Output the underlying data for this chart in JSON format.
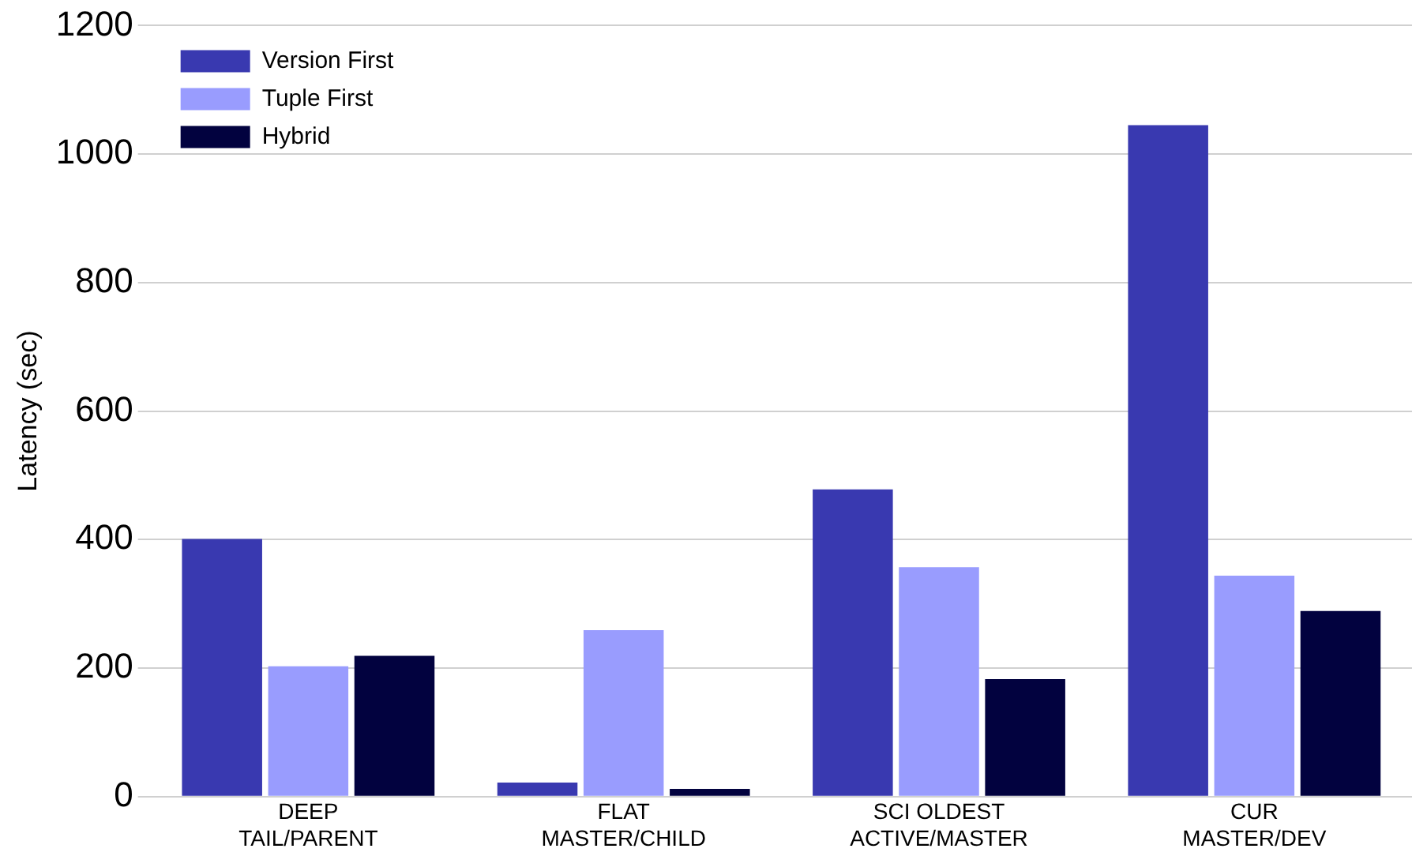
{
  "chart_data": {
    "type": "bar",
    "ylabel": "Latency (sec)",
    "categories": [
      "DEEP\nTAIL/PARENT",
      "FLAT\nMASTER/CHILD",
      "SCI OLDEST\nACTIVE/MASTER",
      "CUR\nMASTER/DEV"
    ],
    "series": [
      {
        "name": "Version First",
        "color": "#3939b0",
        "values": [
          401,
          22,
          478,
          1045
        ]
      },
      {
        "name": "Tuple First",
        "color": "#999cfe",
        "values": [
          203,
          259,
          357,
          344
        ]
      },
      {
        "name": "Hybrid",
        "color": "#02023f",
        "values": [
          219,
          12,
          183,
          289
        ]
      }
    ],
    "ylim": [
      0,
      1200
    ],
    "yticks": [
      0,
      200,
      400,
      600,
      800,
      1000,
      1200
    ],
    "grid": "y",
    "legend": "top left"
  }
}
